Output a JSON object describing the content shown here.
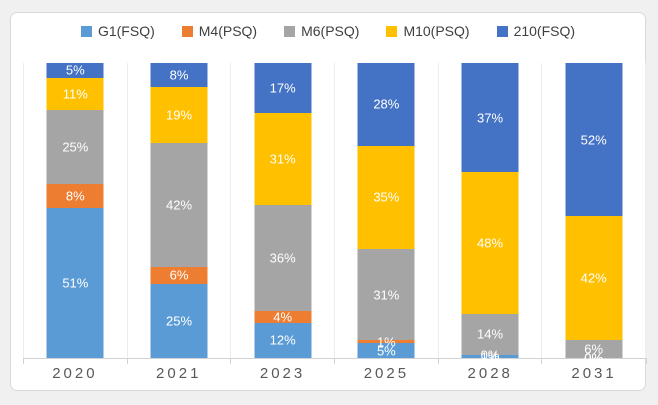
{
  "chart_data": {
    "type": "bar",
    "variant": "stacked-100-percent-column",
    "title": "",
    "xlabel": "",
    "ylabel": "",
    "ylim": [
      0,
      100
    ],
    "grid": "faint-vertical-category-separators",
    "legend_position": "top-center",
    "data_labels": "percent-white-inside",
    "categories": [
      "2020",
      "2021",
      "2023",
      "2025",
      "2028",
      "2031"
    ],
    "series": [
      {
        "name": "G1(FSQ)",
        "color": "#5B9BD5",
        "values": [
          51,
          25,
          12,
          5,
          1,
          0
        ]
      },
      {
        "name": "M4(PSQ)",
        "color": "#ED7D31",
        "values": [
          8,
          6,
          4,
          1,
          0,
          0
        ]
      },
      {
        "name": "M6(PSQ)",
        "color": "#A5A5A5",
        "values": [
          25,
          42,
          36,
          31,
          14,
          6
        ]
      },
      {
        "name": "M10(PSQ)",
        "color": "#FFC000",
        "values": [
          11,
          19,
          31,
          35,
          48,
          42
        ]
      },
      {
        "name": "210(FSQ)",
        "color": "#4472C4",
        "values": [
          5,
          8,
          17,
          28,
          37,
          52
        ]
      }
    ],
    "label_suffix": "%",
    "label_color": "#FFFFFF",
    "axis_label_color": "#595959",
    "axis_line_color": "#D2D2D2"
  }
}
